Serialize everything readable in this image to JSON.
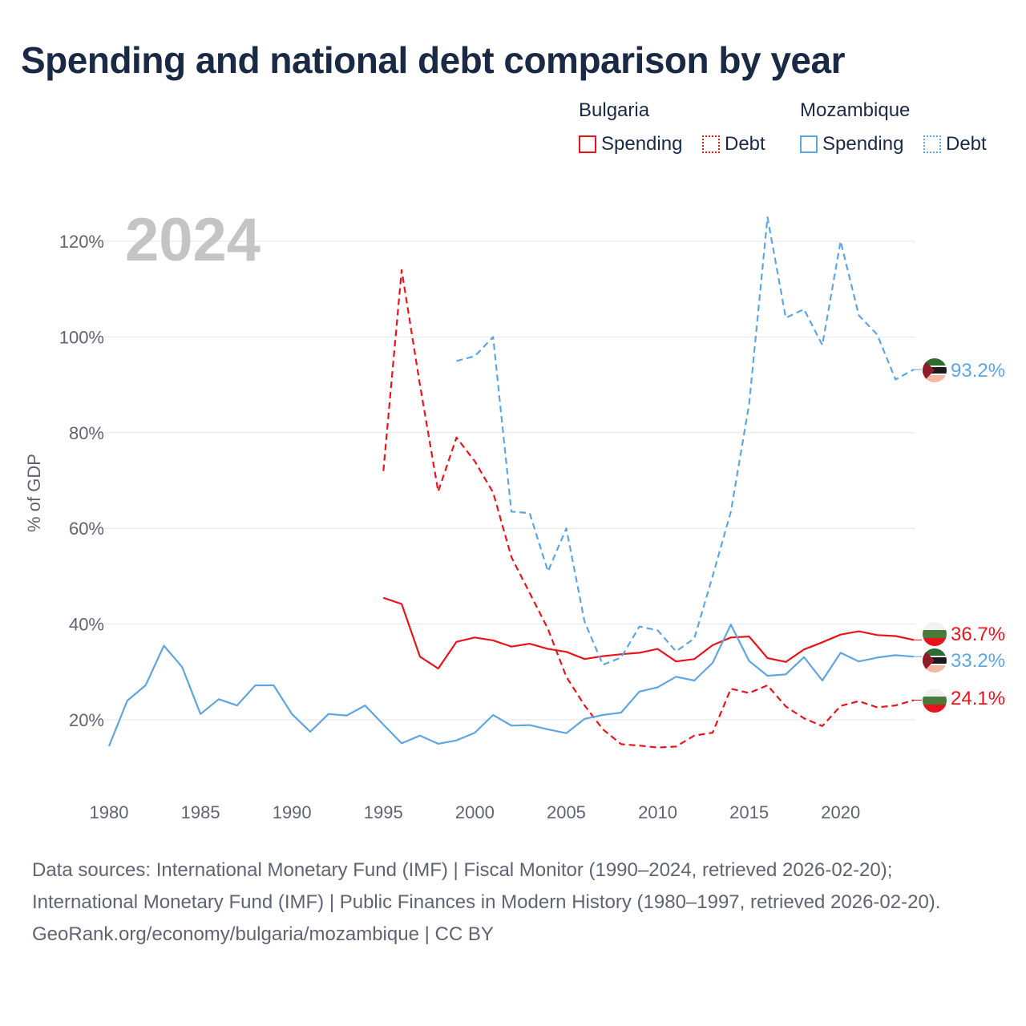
{
  "title": "Spending and national debt comparison by year",
  "legend": {
    "groups": [
      {
        "name": "Bulgaria",
        "items": [
          {
            "label": "Spending",
            "style": "solid"
          },
          {
            "label": "Debt",
            "style": "dotted"
          }
        ],
        "color": "#e8141c"
      },
      {
        "name": "Mozambique",
        "items": [
          {
            "label": "Spending",
            "style": "solid"
          },
          {
            "label": "Debt",
            "style": "dotted"
          }
        ],
        "color": "#5fa6e0"
      }
    ]
  },
  "year_label": "2024",
  "end_labels": {
    "mz_debt": "93.2%",
    "bg_spending": "36.7%",
    "mz_spending": "33.2%",
    "bg_debt": "24.1%"
  },
  "colors": {
    "bulgaria": "#e8141c",
    "mozambique": "#5fa6e0",
    "grid": "#e6e6e6",
    "axis_text": "#606470",
    "year_watermark": "#c4c4c4"
  },
  "chart_data": {
    "type": "line",
    "title": "Spending and national debt comparison by year",
    "xlabel": "",
    "ylabel": "% of GDP",
    "xlim": [
      1980,
      2024
    ],
    "ylim": [
      7,
      127
    ],
    "x_ticks": [
      1980,
      1985,
      1990,
      1995,
      2000,
      2005,
      2010,
      2015,
      2020
    ],
    "x_tick_labels": [
      "1980",
      "1985",
      "1990",
      "1995",
      "2000",
      "2005",
      "2010",
      "2015",
      "2020"
    ],
    "y_ticks": [
      20,
      40,
      60,
      80,
      100,
      120
    ],
    "y_tick_labels": [
      "20%",
      "40%",
      "60%",
      "80%",
      "100%",
      "120%"
    ],
    "series": [
      {
        "name": "Bulgaria Spending",
        "country": "Bulgaria",
        "style": "solid",
        "x": [
          1995,
          1996,
          1997,
          1998,
          1999,
          2000,
          2001,
          2002,
          2003,
          2004,
          2005,
          2006,
          2007,
          2008,
          2009,
          2010,
          2011,
          2012,
          2013,
          2014,
          2015,
          2016,
          2017,
          2018,
          2019,
          2020,
          2021,
          2022,
          2023,
          2024
        ],
        "values": [
          45.5,
          44.2,
          33.2,
          30.7,
          36.3,
          37.2,
          36.6,
          35.3,
          35.9,
          34.8,
          34.2,
          32.7,
          33.3,
          33.7,
          34.0,
          34.8,
          32.2,
          32.7,
          35.6,
          37.2,
          37.4,
          32.9,
          32.1,
          34.7,
          36.2,
          37.8,
          38.5,
          37.7,
          37.5,
          36.7
        ]
      },
      {
        "name": "Bulgaria Debt",
        "country": "Bulgaria",
        "style": "dashed",
        "x": [
          1995,
          1996,
          1997,
          1998,
          1999,
          2000,
          2001,
          2002,
          2003,
          2004,
          2005,
          2006,
          2007,
          2008,
          2009,
          2010,
          2011,
          2012,
          2013,
          2014,
          2015,
          2016,
          2017,
          2018,
          2019,
          2020,
          2021,
          2022,
          2023,
          2024
        ],
        "values": [
          72,
          114,
          90,
          67.7,
          79,
          74,
          67.5,
          54,
          46.5,
          39,
          29,
          23,
          18,
          14.9,
          14.6,
          14.2,
          14.4,
          16.7,
          17.3,
          26.5,
          25.6,
          27.2,
          22.8,
          20.3,
          18.7,
          22.9,
          23.9,
          22.6,
          23.0,
          24.1
        ]
      },
      {
        "name": "Mozambique Spending",
        "country": "Mozambique",
        "style": "solid",
        "x": [
          1980,
          1981,
          1982,
          1983,
          1984,
          1985,
          1986,
          1987,
          1988,
          1989,
          1990,
          1991,
          1992,
          1993,
          1994,
          1995,
          1996,
          1997,
          1998,
          1999,
          2000,
          2001,
          2002,
          2003,
          2004,
          2005,
          2006,
          2007,
          2008,
          2009,
          2010,
          2011,
          2012,
          2013,
          2014,
          2015,
          2016,
          2017,
          2018,
          2019,
          2020,
          2021,
          2022,
          2023,
          2024
        ],
        "values": [
          14.5,
          24,
          27.2,
          35.5,
          31,
          21.2,
          24.3,
          23,
          27.2,
          27.2,
          21.2,
          17.5,
          21.2,
          20.9,
          23,
          19,
          15.1,
          16.7,
          15,
          15.7,
          17.3,
          21,
          18.8,
          18.9,
          18,
          17.2,
          20.2,
          21,
          21.5,
          25.9,
          26.8,
          29,
          28.2,
          31.9,
          39.9,
          32.3,
          29.2,
          29.5,
          33.1,
          28.2,
          34,
          32.2,
          33,
          33.5,
          33.2
        ]
      },
      {
        "name": "Mozambique Debt",
        "country": "Mozambique",
        "style": "dashed",
        "x": [
          1999,
          2000,
          2001,
          2002,
          2003,
          2004,
          2005,
          2006,
          2007,
          2008,
          2009,
          2010,
          2011,
          2012,
          2013,
          2014,
          2015,
          2016,
          2017,
          2018,
          2019,
          2020,
          2021,
          2022,
          2023,
          2024
        ],
        "values": [
          95,
          96,
          100,
          63.5,
          63.2,
          51,
          60,
          40.5,
          31.5,
          33,
          39.5,
          38.7,
          34.3,
          37,
          50,
          63.5,
          86,
          125,
          104,
          105.8,
          98.3,
          120,
          104.5,
          100.5,
          91.1,
          93.2
        ]
      }
    ]
  },
  "footer": {
    "sources": "Data sources: International Monetary Fund (IMF) | Fiscal Monitor (1990–2024, retrieved 2026-02-20); International Monetary Fund (IMF) | Public Finances in Modern History (1980–1997, retrieved 2026-02-20).",
    "credit": "GeoRank.org/economy/bulgaria/mozambique | CC BY"
  }
}
